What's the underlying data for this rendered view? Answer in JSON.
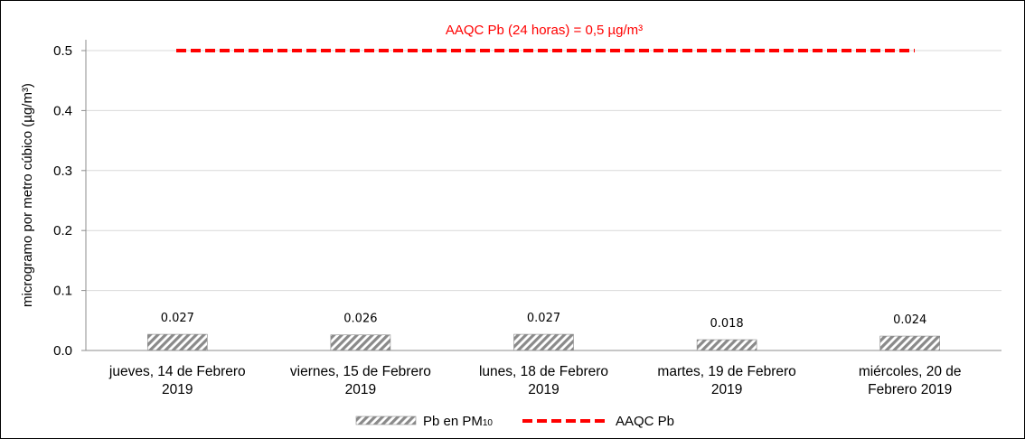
{
  "chart_data": {
    "type": "bar",
    "categories": [
      [
        "jueves, 14 de Febrero",
        "2019"
      ],
      [
        "viernes, 15 de Febrero",
        "2019"
      ],
      [
        "lunes, 18 de Febrero",
        "2019"
      ],
      [
        "martes, 19 de Febrero",
        "2019"
      ],
      [
        "miércoles, 20 de",
        "Febrero 2019"
      ]
    ],
    "series": [
      {
        "name": "Pb en PM",
        "name_subscript": "10",
        "values": [
          0.027,
          0.026,
          0.027,
          0.018,
          0.024
        ],
        "data_labels": [
          "0.027",
          "0.026",
          "0.027",
          "0.018",
          "0.024"
        ],
        "fill": "hatched-gray"
      }
    ],
    "reference_line": {
      "name": "AAQC Pb",
      "value": 0.5,
      "color": "#ff0000",
      "style": "dashed",
      "annotation": "AAQC Pb (24 horas) = 0,5 µg/m³"
    },
    "ylabel": "microgramo por metro cúbico (µg/m³)",
    "xlabel": "",
    "ylim": [
      0,
      0.5
    ],
    "yticks": [
      "0.0",
      "0.1",
      "0.2",
      "0.3",
      "0.4",
      "0.5"
    ],
    "grid": true,
    "legend_position": "bottom"
  }
}
